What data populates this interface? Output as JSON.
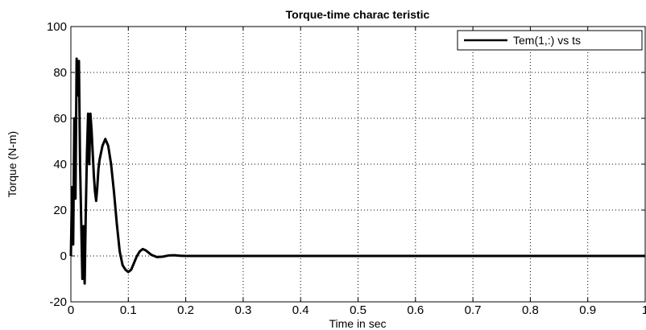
{
  "chart_data": {
    "type": "line",
    "title": "Torque-time charac teristic",
    "xlabel": "Time in sec",
    "ylabel": "Torque (N-m)",
    "xlim": [
      0,
      1
    ],
    "ylim": [
      -20,
      100
    ],
    "xticks": [
      0,
      0.1,
      0.2,
      0.3,
      0.4,
      0.5,
      0.6,
      0.7,
      0.8,
      0.9,
      1
    ],
    "xtick_labels": [
      "0",
      "0.1",
      "0.2",
      "0.3",
      "0.4",
      "0.5",
      "0.6",
      "0.7",
      "0.8",
      "0.9",
      "1"
    ],
    "yticks": [
      -20,
      0,
      20,
      40,
      60,
      80,
      100
    ],
    "ytick_labels": [
      "-20",
      "0",
      "20",
      "40",
      "60",
      "80",
      "100"
    ],
    "grid": true,
    "legend_position": "top-right",
    "series": [
      {
        "name": "Tem(1,:) vs ts",
        "color": "#000000",
        "x": [
          0,
          0.002,
          0.004,
          0.006,
          0.008,
          0.01,
          0.012,
          0.014,
          0.016,
          0.018,
          0.02,
          0.022,
          0.024,
          0.026,
          0.028,
          0.03,
          0.032,
          0.034,
          0.036,
          0.038,
          0.04,
          0.042,
          0.044,
          0.046,
          0.048,
          0.05,
          0.055,
          0.06,
          0.065,
          0.07,
          0.075,
          0.08,
          0.085,
          0.09,
          0.095,
          0.1,
          0.105,
          0.11,
          0.115,
          0.12,
          0.125,
          0.13,
          0.135,
          0.14,
          0.145,
          0.15,
          0.16,
          0.17,
          0.18,
          0.19,
          0.2,
          0.25,
          0.3,
          0.4,
          0.5,
          0.6,
          0.7,
          0.8,
          0.9,
          1.0
        ],
        "y": [
          0,
          30,
          5,
          60,
          25,
          86,
          70,
          85,
          40,
          15,
          -10,
          13,
          -12,
          20,
          45,
          62,
          40,
          62,
          55,
          45,
          35,
          28,
          24,
          30,
          38,
          42,
          48,
          51,
          48,
          40,
          28,
          14,
          2,
          -4,
          -6,
          -7,
          -6,
          -3,
          0,
          2,
          3,
          2.5,
          1.5,
          0.5,
          0,
          -0.5,
          -0.3,
          0.2,
          0.3,
          0.1,
          0,
          0,
          0,
          0,
          0,
          0,
          0,
          0,
          0,
          0
        ]
      }
    ]
  }
}
